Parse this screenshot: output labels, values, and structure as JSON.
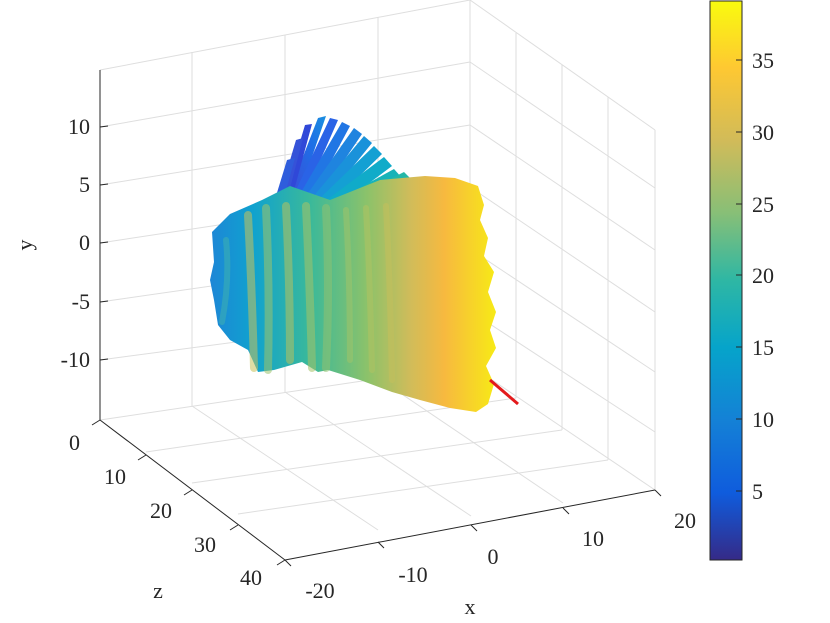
{
  "chart_data": {
    "type": "surface3d",
    "title": "",
    "xlabel": "x",
    "ylabel": "y",
    "zlabel": "z",
    "x_ticks": [
      "-20",
      "-10",
      "0",
      "10",
      "20"
    ],
    "y_ticks": [
      "10",
      "5",
      "0",
      "-5",
      "-10"
    ],
    "z_ticks": [
      "0",
      "10",
      "20",
      "30",
      "40"
    ],
    "xlim": [
      -20,
      20
    ],
    "ylim": [
      -15,
      15
    ],
    "zlim": [
      0,
      40
    ],
    "grid": true,
    "colormap": "parula",
    "colorbar": {
      "ticks": [
        "35",
        "30",
        "25",
        "20",
        "15",
        "10",
        "5"
      ],
      "range": [
        0,
        38.6
      ],
      "placement": "right"
    },
    "colors": {
      "parula": [
        "#352a87",
        "#0f5cdd",
        "#1481d6",
        "#06a4ca",
        "#2eb7a4",
        "#87bf77",
        "#d1bb59",
        "#fec832",
        "#f9fb0e"
      ],
      "marker_line": "#e31a1c"
    }
  }
}
